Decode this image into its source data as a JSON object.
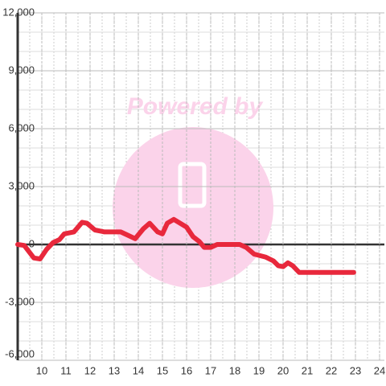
{
  "chart_data": {
    "type": "line",
    "watermark": "Powered by",
    "x": [
      9.0,
      9.27,
      9.67,
      9.93,
      10.2,
      10.47,
      10.73,
      10.93,
      11.33,
      11.67,
      11.87,
      12.2,
      12.6,
      13.27,
      13.53,
      13.87,
      14.2,
      14.47,
      14.8,
      15.0,
      15.2,
      15.47,
      16.0,
      16.27,
      16.53,
      16.73,
      17.0,
      17.27,
      18.2,
      18.47,
      18.8,
      19.27,
      19.6,
      19.8,
      20.0,
      20.2,
      20.4,
      20.67,
      22.93
    ],
    "series": [
      {
        "color": "#e8283c",
        "values": [
          0,
          -50,
          -700,
          -750,
          -250,
          100,
          250,
          550,
          650,
          1150,
          1100,
          750,
          650,
          650,
          500,
          300,
          800,
          1100,
          650,
          550,
          1100,
          1300,
          900,
          400,
          150,
          -150,
          -150,
          0,
          0,
          -150,
          -500,
          -650,
          -850,
          -1100,
          -1150,
          -950,
          -1100,
          -1450,
          -1450
        ]
      }
    ],
    "xlim": [
      9,
      24.2
    ],
    "xticks": [
      10,
      11,
      12,
      13,
      14,
      15,
      16,
      17,
      18,
      19,
      20,
      21,
      22,
      23,
      24
    ],
    "ylim": [
      -6000,
      12000
    ],
    "yticks": [
      {
        "value": -6000,
        "label": "-6,000"
      },
      {
        "value": -3000,
        "label": "-3,000"
      },
      0,
      {
        "value": 3000,
        "label": "3,000"
      },
      {
        "value": 6000,
        "label": "6,000"
      },
      {
        "value": 9000,
        "label": "9,000"
      },
      {
        "value": 12000,
        "label": "12,000"
      }
    ],
    "grid": true
  }
}
